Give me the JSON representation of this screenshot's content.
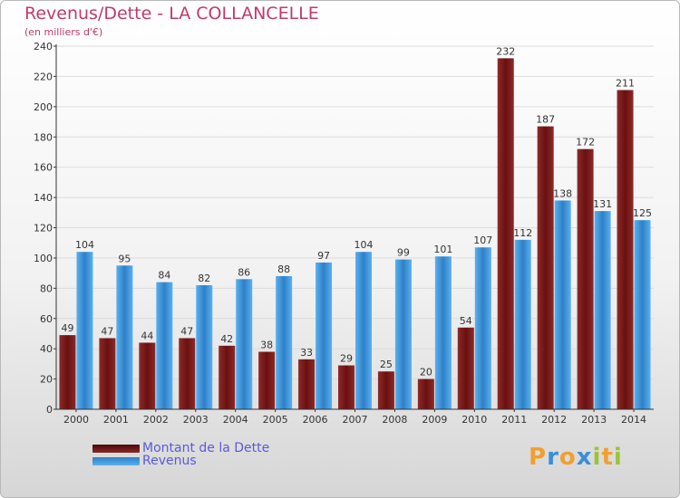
{
  "title": "Revenus/Dette - LA COLLANCELLE",
  "subtitle": "(en milliers d'€)",
  "logo": {
    "text": "Proxiti",
    "colors": [
      "#f0a030",
      "#3a8ed8",
      "#f0a030",
      "#3a8ed8",
      "#9ac43a",
      "#f0a030",
      "#9ac43a"
    ]
  },
  "chart_data": {
    "type": "bar",
    "categories": [
      "2000",
      "2001",
      "2002",
      "2003",
      "2004",
      "2005",
      "2006",
      "2007",
      "2008",
      "2009",
      "2010",
      "2011",
      "2012",
      "2013",
      "2014"
    ],
    "series": [
      {
        "name": "Montant de la Dette",
        "color": "#7a1a1a",
        "values": [
          49,
          47,
          44,
          47,
          42,
          38,
          33,
          29,
          25,
          20,
          54,
          232,
          187,
          172,
          211
        ]
      },
      {
        "name": "Revenus",
        "color": "#4aa0e0",
        "values": [
          104,
          95,
          84,
          82,
          86,
          88,
          97,
          104,
          99,
          101,
          107,
          112,
          138,
          131,
          125
        ]
      }
    ],
    "ylim": [
      0,
      240
    ],
    "yticks": [
      0,
      20,
      40,
      60,
      80,
      100,
      120,
      140,
      160,
      180,
      200,
      220,
      240
    ],
    "grid": true,
    "legend": "bottom-left"
  }
}
